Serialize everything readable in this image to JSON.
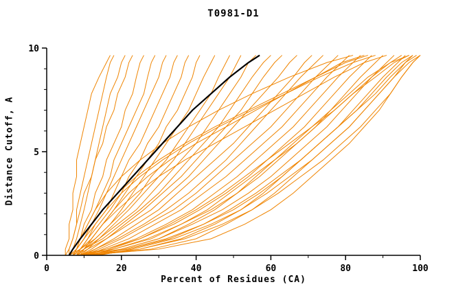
{
  "chart_data": {
    "type": "line",
    "title": "T0981-D1",
    "xlabel": "Percent of Residues (CA)",
    "ylabel": "Distance Cutoff, A",
    "xlim": [
      0,
      100
    ],
    "ylim": [
      0,
      10
    ],
    "x_major_ticks": [
      0,
      20,
      40,
      60,
      80,
      100
    ],
    "x_minor_ticks": [
      10,
      30,
      50,
      70,
      90
    ],
    "y_major_ticks": [
      0,
      5,
      10
    ],
    "y_minor_ticks": [
      1,
      2,
      3,
      4,
      6,
      7,
      8,
      9
    ],
    "grid": false,
    "legend": "none",
    "colors": {
      "model_lines": "#ef8400",
      "highlight_line": "#000000",
      "axis": "#000000"
    },
    "y_grid": [
      0,
      0.3,
      0.8,
      1.5,
      2.2,
      3.0,
      3.8,
      4.6,
      5.4,
      6.2,
      7.0,
      7.8,
      8.6,
      9.3,
      9.65
    ],
    "highlight_series_x": [
      6,
      7,
      9,
      12,
      15,
      19,
      23,
      27,
      31,
      35,
      39,
      44,
      49,
      54,
      57
    ],
    "orange_series_x": [
      [
        5,
        5,
        6,
        6,
        7,
        7,
        8,
        8,
        9,
        10,
        11,
        12,
        14,
        16,
        17
      ],
      [
        6,
        6,
        7,
        8,
        8,
        9,
        10,
        11,
        12,
        13,
        14,
        15,
        16,
        17,
        18
      ],
      [
        6,
        7,
        8,
        9,
        10,
        11,
        12,
        13,
        14,
        15,
        16,
        17,
        19,
        20,
        21
      ],
      [
        5,
        6,
        7,
        8,
        9,
        10,
        12,
        13,
        15,
        16,
        18,
        19,
        21,
        22,
        23
      ],
      [
        7,
        8,
        9,
        10,
        12,
        13,
        15,
        16,
        18,
        20,
        21,
        23,
        24,
        25,
        26
      ],
      [
        6,
        7,
        9,
        11,
        13,
        15,
        17,
        18,
        20,
        22,
        24,
        26,
        27,
        28,
        29
      ],
      [
        7,
        8,
        10,
        12,
        14,
        16,
        18,
        20,
        22,
        24,
        26,
        28,
        30,
        31,
        32
      ],
      [
        6,
        8,
        10,
        13,
        16,
        18,
        20,
        22,
        25,
        27,
        29,
        31,
        33,
        34,
        35
      ],
      [
        8,
        9,
        11,
        14,
        17,
        20,
        22,
        25,
        27,
        30,
        32,
        34,
        36,
        37,
        38
      ],
      [
        7,
        9,
        12,
        15,
        18,
        21,
        24,
        27,
        30,
        32,
        35,
        37,
        39,
        40,
        41
      ],
      [
        8,
        10,
        13,
        17,
        20,
        23,
        26,
        29,
        32,
        35,
        38,
        40,
        42,
        44,
        45
      ],
      [
        6,
        9,
        13,
        17,
        21,
        25,
        28,
        32,
        35,
        38,
        41,
        44,
        46,
        48,
        49
      ],
      [
        9,
        11,
        14,
        18,
        22,
        26,
        30,
        34,
        37,
        40,
        43,
        46,
        49,
        51,
        52
      ],
      [
        8,
        10,
        14,
        19,
        24,
        28,
        32,
        36,
        40,
        43,
        46,
        49,
        52,
        54,
        56
      ],
      [
        7,
        10,
        15,
        20,
        25,
        30,
        34,
        38,
        42,
        46,
        49,
        52,
        55,
        58,
        60
      ],
      [
        9,
        12,
        16,
        21,
        26,
        31,
        36,
        40,
        44,
        48,
        52,
        55,
        58,
        61,
        63
      ],
      [
        8,
        11,
        16,
        22,
        28,
        33,
        38,
        42,
        46,
        50,
        54,
        58,
        62,
        65,
        67
      ],
      [
        10,
        13,
        18,
        24,
        30,
        35,
        40,
        45,
        50,
        54,
        58,
        62,
        66,
        69,
        71
      ],
      [
        9,
        13,
        19,
        26,
        32,
        38,
        43,
        48,
        52,
        56,
        60,
        64,
        68,
        72,
        74
      ],
      [
        10,
        14,
        20,
        27,
        34,
        40,
        45,
        50,
        55,
        60,
        64,
        68,
        72,
        76,
        78
      ],
      [
        11,
        15,
        22,
        29,
        36,
        42,
        48,
        53,
        58,
        63,
        67,
        71,
        75,
        79,
        81
      ],
      [
        10,
        16,
        24,
        32,
        39,
        45,
        51,
        56,
        61,
        66,
        70,
        74,
        78,
        82,
        84
      ],
      [
        12,
        17,
        25,
        34,
        41,
        48,
        54,
        59,
        64,
        69,
        73,
        77,
        81,
        85,
        87
      ],
      [
        11,
        18,
        27,
        36,
        44,
        51,
        57,
        62,
        67,
        72,
        76,
        80,
        84,
        88,
        90
      ],
      [
        13,
        20,
        30,
        39,
        47,
        54,
        60,
        65,
        70,
        75,
        79,
        83,
        87,
        91,
        93
      ],
      [
        12,
        21,
        32,
        42,
        50,
        57,
        63,
        68,
        73,
        78,
        82,
        86,
        90,
        94,
        96
      ],
      [
        14,
        23,
        34,
        44,
        52,
        59,
        65,
        71,
        76,
        81,
        85,
        89,
        93,
        96,
        98
      ],
      [
        13,
        25,
        37,
        47,
        55,
        62,
        68,
        74,
        79,
        84,
        88,
        92,
        95,
        98,
        100
      ],
      [
        9,
        20,
        30,
        38,
        45,
        51,
        56,
        61,
        66,
        71,
        76,
        81,
        86,
        92,
        97
      ],
      [
        10,
        25,
        36,
        45,
        52,
        58,
        63,
        68,
        73,
        78,
        83,
        88,
        92,
        96,
        99
      ],
      [
        8,
        18,
        28,
        36,
        43,
        49,
        55,
        61,
        67,
        72,
        77,
        82,
        88,
        93,
        97
      ],
      [
        11,
        28,
        40,
        48,
        55,
        61,
        66,
        71,
        76,
        81,
        85,
        89,
        93,
        97,
        100
      ],
      [
        9,
        22,
        33,
        42,
        49,
        56,
        62,
        68,
        73,
        78,
        83,
        87,
        91,
        95,
        98
      ],
      [
        10,
        30,
        44,
        53,
        60,
        66,
        71,
        76,
        81,
        85,
        89,
        92,
        95,
        98,
        100
      ],
      [
        8,
        16,
        25,
        33,
        40,
        47,
        53,
        59,
        65,
        71,
        77,
        82,
        87,
        92,
        95
      ],
      [
        7,
        8,
        9,
        11,
        13,
        16,
        20,
        25,
        31,
        38,
        46,
        55,
        65,
        75,
        82
      ],
      [
        8,
        9,
        11,
        13,
        16,
        20,
        25,
        31,
        38,
        46,
        55,
        64,
        73,
        82,
        88
      ],
      [
        9,
        10,
        12,
        15,
        19,
        24,
        30,
        37,
        45,
        53,
        61,
        69,
        77,
        85,
        91
      ],
      [
        7,
        8,
        10,
        12,
        15,
        19,
        24,
        30,
        37,
        45,
        54,
        63,
        72,
        80,
        86
      ],
      [
        8,
        10,
        12,
        15,
        18,
        22,
        27,
        33,
        40,
        48,
        56,
        64,
        72,
        79,
        85
      ]
    ]
  }
}
